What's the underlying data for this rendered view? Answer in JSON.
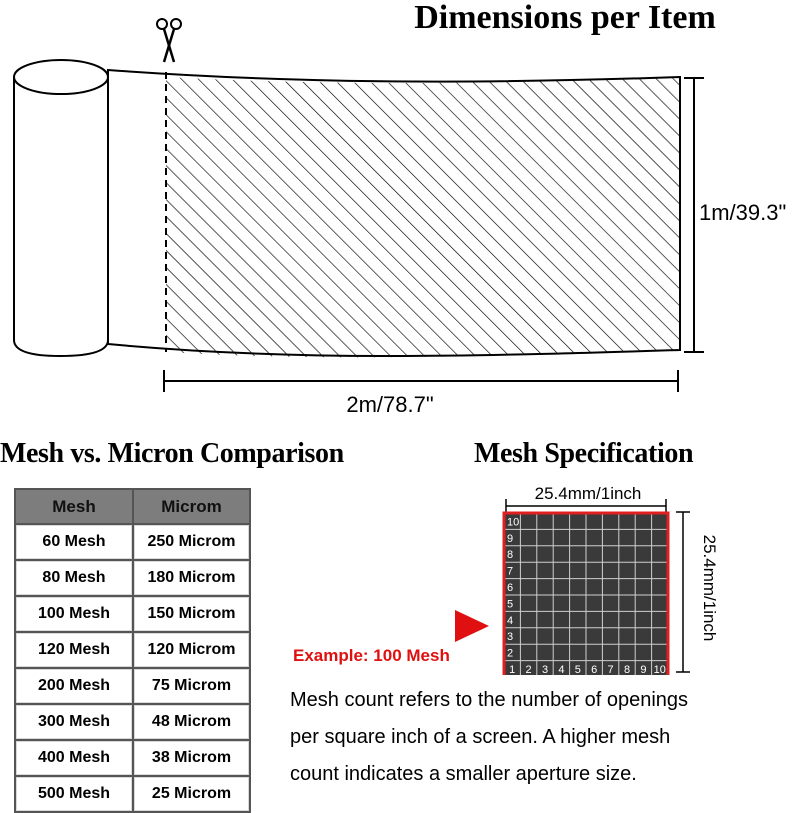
{
  "title": "Dimensions per Item",
  "roll": {
    "height_label": "1m/39.3\"",
    "width_label": "2m/78.7\"",
    "icons": [
      "scissors-icon"
    ]
  },
  "table": {
    "heading": "Mesh vs. Micron Comparison",
    "headers": [
      "Mesh",
      "Microm"
    ],
    "rows": [
      [
        "60 Mesh",
        "250 Microm"
      ],
      [
        "80 Mesh",
        "180 Microm"
      ],
      [
        "100 Mesh",
        "150 Microm"
      ],
      [
        "120 Mesh",
        "120 Microm"
      ],
      [
        "200 Mesh",
        "75 Microm"
      ],
      [
        "300 Mesh",
        "48 Microm"
      ],
      [
        "400 Mesh",
        "38 Microm"
      ],
      [
        "500 Mesh",
        "25 Microm"
      ]
    ]
  },
  "spec": {
    "heading": "Mesh Specification",
    "top_dim": "25.4mm/1inch",
    "side_dim": "25.4mm/1inch",
    "grid_count": 10,
    "example": "Example: 100 Mesh",
    "border_color": "#e02020",
    "arrow_color": "#e01010"
  },
  "description": [
    "Mesh count refers to the number of openings",
    "per square inch of a screen. A higher mesh",
    "count indicates a smaller aperture size."
  ]
}
